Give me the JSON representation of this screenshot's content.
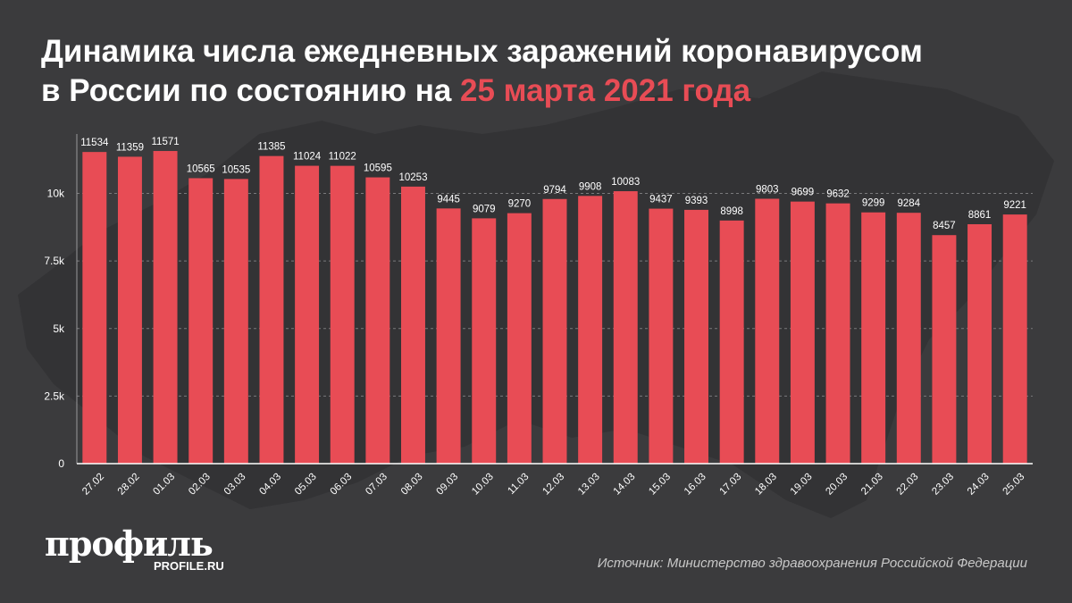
{
  "title": {
    "line1": "Динамика числа ежедневных заражений коронавирусом",
    "line2_prefix": "в России по состоянию на ",
    "line2_accent": "25 марта 2021 года"
  },
  "colors": {
    "background": "#3b3b3d",
    "bar": "#e84c55",
    "accent": "#e84c55",
    "text": "#ffffff"
  },
  "chart_data": {
    "type": "bar",
    "title": "Динамика числа ежедневных заражений коронавирусом в России по состоянию на 25 марта 2021 года",
    "xlabel": "",
    "ylabel": "",
    "categories": [
      "27.02",
      "28.02",
      "01.03",
      "02.03",
      "03.03",
      "04.03",
      "05.03",
      "06.03",
      "07.03",
      "08.03",
      "09.03",
      "10.03",
      "11.03",
      "12.03",
      "13.03",
      "14.03",
      "15.03",
      "16.03",
      "17.03",
      "18.03",
      "19.03",
      "20.03",
      "21.03",
      "22.03",
      "23.03",
      "24.03",
      "25.03"
    ],
    "values": [
      11534,
      11359,
      11571,
      10565,
      10535,
      11385,
      11024,
      11022,
      10595,
      10253,
      9445,
      9079,
      9270,
      9794,
      9908,
      10083,
      9437,
      9393,
      8998,
      9803,
      9699,
      9632,
      9299,
      9284,
      8457,
      8861,
      9221
    ],
    "ylim": [
      0,
      12200
    ],
    "yticks": [
      0,
      2500,
      5000,
      7500,
      10000
    ],
    "ytick_labels": [
      "0",
      "2.5k",
      "5k",
      "7.5k",
      "10k"
    ],
    "grid": true,
    "data_labels": true
  },
  "branding": {
    "logo": "профиль",
    "url": "PROFILE.RU"
  },
  "source": "Источник: Министерство здравоохранения Российской Федерации"
}
